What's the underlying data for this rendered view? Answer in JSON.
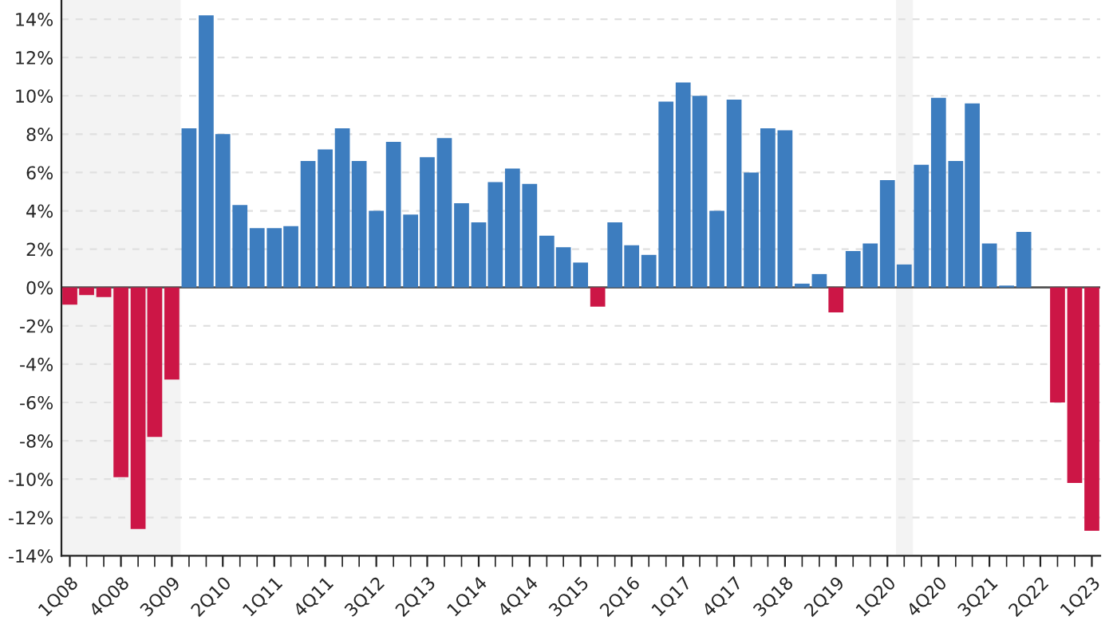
{
  "chart_data": {
    "type": "bar",
    "x": [
      "2008-02-15",
      "2008-05-15",
      "2008-08-15",
      "2008-11-15",
      "2009-02-15",
      "2009-05-15",
      "2009-08-15",
      "2009-11-15",
      "2010-02-15",
      "2010-05-15",
      "2010-08-15",
      "2010-11-15",
      "2011-02-15",
      "2011-05-15",
      "2011-08-15",
      "2011-11-15",
      "2012-02-15",
      "2012-05-15",
      "2012-08-15",
      "2012-11-15",
      "2013-02-15",
      "2013-05-15",
      "2013-08-15",
      "2013-11-15",
      "2014-02-15",
      "2014-05-15",
      "2014-08-15",
      "2014-11-15",
      "2015-02-15",
      "2015-05-15",
      "2015-08-15",
      "2015-11-15",
      "2016-02-15",
      "2016-05-15",
      "2016-08-15",
      "2016-11-15",
      "2017-02-15",
      "2017-05-15",
      "2017-08-15",
      "2017-11-15",
      "2018-02-15",
      "2018-05-15",
      "2018-08-15",
      "2018-11-15",
      "2019-02-15",
      "2019-05-15",
      "2019-08-15",
      "2019-11-15",
      "2020-02-15",
      "2020-05-15",
      "2020-08-15",
      "2020-11-15",
      "2021-02-15",
      "2021-05-15",
      "2021-08-15",
      "2021-11-15",
      "2022-02-15",
      "2022-05-15",
      "2022-08-15",
      "2022-11-15",
      "2023-02-15"
    ],
    "values": [
      -0.9,
      -0.4,
      -0.5,
      -9.9,
      -12.6,
      -7.8,
      -4.8,
      8.3,
      14.2,
      8.0,
      4.3,
      3.1,
      3.1,
      3.2,
      6.6,
      7.2,
      8.3,
      6.6,
      4.0,
      7.6,
      3.8,
      6.8,
      7.8,
      4.4,
      3.4,
      5.5,
      6.2,
      5.4,
      2.7,
      2.1,
      1.3,
      -1.0,
      3.4,
      2.2,
      1.7,
      9.7,
      10.7,
      10.0,
      4.0,
      9.8,
      6.0,
      8.3,
      8.2,
      0.2,
      0.7,
      -1.3,
      1.9,
      2.3,
      5.6,
      1.2,
      6.4,
      9.9,
      6.6,
      9.6,
      2.3,
      0.1,
      2.9,
      null,
      -6.0,
      -10.2,
      -12.7
    ],
    "colors": [
      "#cc1646",
      "#cc1646",
      "#cc1646",
      "#cc1646",
      "#cc1646",
      "#cc1646",
      "#cc1646",
      "#3d7dbf",
      "#3d7dbf",
      "#3d7dbf",
      "#3d7dbf",
      "#3d7dbf",
      "#3d7dbf",
      "#3d7dbf",
      "#3d7dbf",
      "#3d7dbf",
      "#3d7dbf",
      "#3d7dbf",
      "#3d7dbf",
      "#3d7dbf",
      "#3d7dbf",
      "#3d7dbf",
      "#3d7dbf",
      "#3d7dbf",
      "#3d7dbf",
      "#3d7dbf",
      "#3d7dbf",
      "#3d7dbf",
      "#3d7dbf",
      "#3d7dbf",
      "#3d7dbf",
      "#cc1646",
      "#3d7dbf",
      "#3d7dbf",
      "#3d7dbf",
      "#3d7dbf",
      "#3d7dbf",
      "#3d7dbf",
      "#3d7dbf",
      "#3d7dbf",
      "#3d7dbf",
      "#3d7dbf",
      "#3d7dbf",
      "#3d7dbf",
      "#3d7dbf",
      "#cc1646",
      "#3d7dbf",
      "#3d7dbf",
      "#3d7dbf",
      "#3d7dbf",
      "#3d7dbf",
      "#3d7dbf",
      "#3d7dbf",
      "#3d7dbf",
      "#3d7dbf",
      "#3d7dbf",
      "#3d7dbf",
      null,
      "#cc1646",
      "#cc1646",
      "#cc1646"
    ],
    "xlim": [
      "2008-01-01",
      "2023-04-01"
    ],
    "xticks": [
      {
        "value": "2008-02-15",
        "label": "1Q08"
      },
      {
        "value": "2008-11-15",
        "label": "4Q08"
      },
      {
        "value": "2009-08-15",
        "label": "3Q09"
      },
      {
        "value": "2010-05-15",
        "label": "2Q10"
      },
      {
        "value": "2011-02-15",
        "label": "1Q11"
      },
      {
        "value": "2011-11-15",
        "label": "4Q11"
      },
      {
        "value": "2012-08-15",
        "label": "3Q12"
      },
      {
        "value": "2013-05-15",
        "label": "2Q13"
      },
      {
        "value": "2014-02-15",
        "label": "1Q14"
      },
      {
        "value": "2014-11-15",
        "label": "4Q14"
      },
      {
        "value": "2015-08-15",
        "label": "3Q15"
      },
      {
        "value": "2016-05-15",
        "label": "2Q16"
      },
      {
        "value": "2017-02-15",
        "label": "1Q17"
      },
      {
        "value": "2017-11-15",
        "label": "4Q17"
      },
      {
        "value": "2018-08-15",
        "label": "3Q18"
      },
      {
        "value": "2019-05-15",
        "label": "2Q19"
      },
      {
        "value": "2020-02-15",
        "label": "1Q20"
      },
      {
        "value": "2020-11-15",
        "label": "4Q20"
      },
      {
        "value": "2021-08-15",
        "label": "3Q21"
      },
      {
        "value": "2022-05-15",
        "label": "2Q22"
      },
      {
        "value": "2023-02-15",
        "label": "1Q23"
      }
    ],
    "ylim": [
      -14,
      15
    ],
    "yticks": [
      {
        "value": -14,
        "label": "-14%"
      },
      {
        "value": -12,
        "label": "-12%"
      },
      {
        "value": -10,
        "label": "-10%"
      },
      {
        "value": -8,
        "label": "-8%"
      },
      {
        "value": -6,
        "label": "-6%"
      },
      {
        "value": -4,
        "label": "-4%"
      },
      {
        "value": -2,
        "label": "-2%"
      },
      {
        "value": 0,
        "label": "0%"
      },
      {
        "value": 2,
        "label": "2%"
      },
      {
        "value": 4,
        "label": "4%"
      },
      {
        "value": 6,
        "label": "6%"
      },
      {
        "value": 8,
        "label": "8%"
      },
      {
        "value": 10,
        "label": "10%"
      },
      {
        "value": 12,
        "label": "12%"
      },
      {
        "value": 14,
        "label": "14%"
      }
    ],
    "bands": [
      {
        "axis": "x",
        "from": "2008-01-01",
        "to": "2009-10-01",
        "color": "#f3f3f3"
      },
      {
        "axis": "x",
        "from": "2020-04-01",
        "to": "2020-07-01",
        "color": "#f3f3f3"
      }
    ],
    "ref_lines": [
      {
        "axis": "y",
        "value": 0,
        "color": "#555555"
      }
    ],
    "grid": "y"
  }
}
